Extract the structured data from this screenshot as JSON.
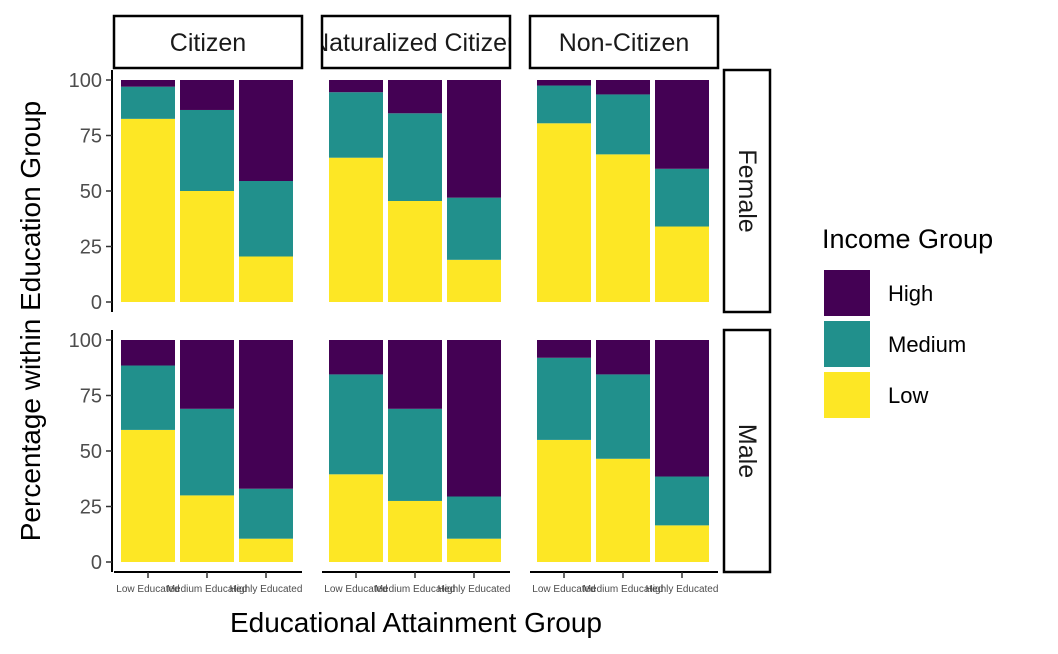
{
  "chart_data": {
    "type": "bar",
    "stacked": true,
    "xlabel": "Educational Attainment Group",
    "ylabel": "Percentage within Education Group",
    "ylim": [
      0,
      100
    ],
    "yticks": [
      0,
      25,
      50,
      75,
      100
    ],
    "categories": [
      "Low Educated",
      "Medium Educated",
      "Highly Educated"
    ],
    "facet_cols": [
      "Citizen",
      "Naturalized Citizen",
      "Non-Citizen"
    ],
    "facet_rows": [
      "Female",
      "Male"
    ],
    "legend": {
      "title": "Income Group",
      "position": "right",
      "entries": [
        {
          "name": "High",
          "color": "#440154"
        },
        {
          "name": "Medium",
          "color": "#21908C"
        },
        {
          "name": "Low",
          "color": "#FDE725"
        }
      ]
    },
    "stack_order": [
      "Low",
      "Medium",
      "High"
    ],
    "colors": {
      "Low": "#FDE725",
      "Medium": "#21908C",
      "High": "#440154"
    },
    "panels": [
      {
        "row": "Female",
        "col": "Citizen",
        "bars": [
          {
            "category": "Low Educated",
            "Low": 82.5,
            "Medium": 14.5,
            "High": 3.0
          },
          {
            "category": "Medium Educated",
            "Low": 50.0,
            "Medium": 36.5,
            "High": 13.5
          },
          {
            "category": "Highly Educated",
            "Low": 20.5,
            "Medium": 34.0,
            "High": 45.5
          }
        ]
      },
      {
        "row": "Female",
        "col": "Naturalized Citizen",
        "bars": [
          {
            "category": "Low Educated",
            "Low": 65.0,
            "Medium": 29.5,
            "High": 5.5
          },
          {
            "category": "Medium Educated",
            "Low": 45.5,
            "Medium": 39.5,
            "High": 15.0
          },
          {
            "category": "Highly Educated",
            "Low": 19.0,
            "Medium": 28.0,
            "High": 53.0
          }
        ]
      },
      {
        "row": "Female",
        "col": "Non-Citizen",
        "bars": [
          {
            "category": "Low Educated",
            "Low": 80.5,
            "Medium": 17.0,
            "High": 2.5
          },
          {
            "category": "Medium Educated",
            "Low": 66.5,
            "Medium": 27.0,
            "High": 6.5
          },
          {
            "category": "Highly Educated",
            "Low": 34.0,
            "Medium": 26.0,
            "High": 40.0
          }
        ]
      },
      {
        "row": "Male",
        "col": "Citizen",
        "bars": [
          {
            "category": "Low Educated",
            "Low": 59.5,
            "Medium": 29.0,
            "High": 11.5
          },
          {
            "category": "Medium Educated",
            "Low": 30.0,
            "Medium": 39.0,
            "High": 31.0
          },
          {
            "category": "Highly Educated",
            "Low": 10.5,
            "Medium": 22.5,
            "High": 67.0
          }
        ]
      },
      {
        "row": "Male",
        "col": "Naturalized Citizen",
        "bars": [
          {
            "category": "Low Educated",
            "Low": 39.5,
            "Medium": 45.0,
            "High": 15.5
          },
          {
            "category": "Medium Educated",
            "Low": 27.5,
            "Medium": 41.5,
            "High": 31.0
          },
          {
            "category": "Highly Educated",
            "Low": 10.5,
            "Medium": 19.0,
            "High": 70.5
          }
        ]
      },
      {
        "row": "Male",
        "col": "Non-Citizen",
        "bars": [
          {
            "category": "Low Educated",
            "Low": 55.0,
            "Medium": 37.0,
            "High": 8.0
          },
          {
            "category": "Medium Educated",
            "Low": 46.5,
            "Medium": 38.0,
            "High": 15.5
          },
          {
            "category": "Highly Educated",
            "Low": 16.5,
            "Medium": 22.0,
            "High": 61.5
          }
        ]
      }
    ]
  }
}
